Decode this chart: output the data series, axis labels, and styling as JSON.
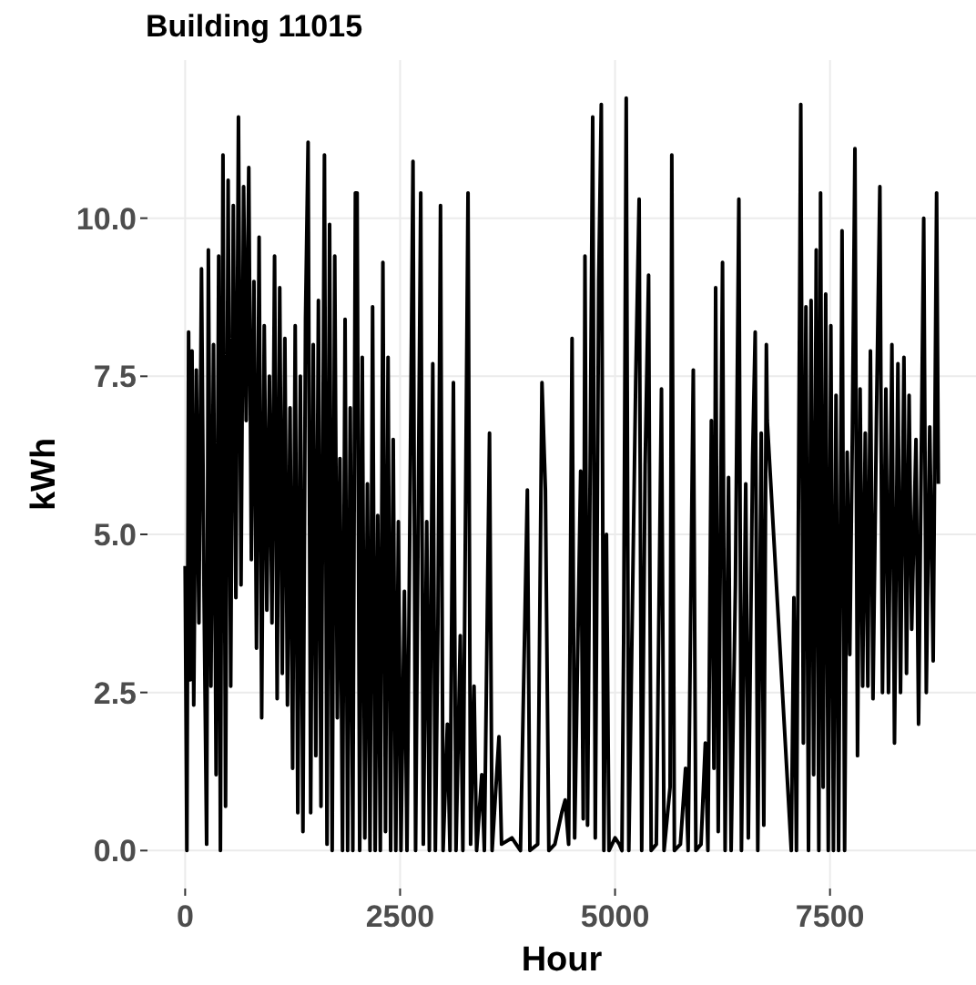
{
  "chart_data": {
    "type": "line",
    "title": "Building 11015",
    "xlabel": "Hour",
    "ylabel": "kWh",
    "xlim": [
      -438,
      9198
    ],
    "ylim": [
      -0.6,
      12.5
    ],
    "xticks": [
      0,
      2500,
      5000,
      7500
    ],
    "yticks": [
      {
        "value": 0,
        "label": "0.0"
      },
      {
        "value": 2.5,
        "label": "2.5"
      },
      {
        "value": 5,
        "label": "5.0"
      },
      {
        "value": 7.5,
        "label": "7.5"
      },
      {
        "value": 10,
        "label": "10.0"
      }
    ],
    "grid": true,
    "series": [
      {
        "color": "#000000",
        "x": [
          0,
          20,
          40,
          60,
          80,
          100,
          130,
          160,
          190,
          220,
          250,
          270,
          300,
          330,
          360,
          390,
          410,
          440,
          470,
          500,
          530,
          560,
          590,
          620,
          650,
          680,
          710,
          740,
          770,
          800,
          830,
          860,
          890,
          920,
          950,
          980,
          1010,
          1040,
          1070,
          1100,
          1130,
          1160,
          1190,
          1220,
          1250,
          1280,
          1310,
          1340,
          1370,
          1400,
          1430,
          1460,
          1490,
          1520,
          1550,
          1580,
          1620,
          1650,
          1680,
          1710,
          1740,
          1770,
          1800,
          1830,
          1860,
          1890,
          1920,
          1950,
          1980,
          2000,
          2030,
          2060,
          2090,
          2120,
          2150,
          2180,
          2210,
          2240,
          2270,
          2300,
          2330,
          2360,
          2390,
          2420,
          2450,
          2480,
          2510,
          2550,
          2580,
          2650,
          2680,
          2740,
          2770,
          2810,
          2840,
          2880,
          2910,
          2940,
          2970,
          3000,
          3050,
          3080,
          3120,
          3150,
          3200,
          3230,
          3290,
          3320,
          3360,
          3390,
          3450,
          3480,
          3540,
          3570,
          3650,
          3680,
          3800,
          3900,
          3980,
          4010,
          4100,
          4150,
          4190,
          4230,
          4300,
          4380,
          4420,
          4460,
          4500,
          4530,
          4600,
          4630,
          4650,
          4680,
          4740,
          4770,
          4810,
          4840,
          4870,
          4900,
          4930,
          5000,
          5050,
          5080,
          5100,
          5130,
          5160,
          5240,
          5280,
          5310,
          5350,
          5390,
          5420,
          5480,
          5540,
          5570,
          5640,
          5660,
          5690,
          5760,
          5820,
          5850,
          5910,
          5940,
          6000,
          6050,
          6080,
          6120,
          6150,
          6170,
          6200,
          6250,
          6280,
          6320,
          6350,
          6400,
          6440,
          6470,
          6520,
          6550,
          6600,
          6630,
          6660,
          6700,
          6730,
          6760,
          6770,
          7050,
          7080,
          7110,
          7160,
          7190,
          7220,
          7250,
          7280,
          7310,
          7340,
          7370,
          7390,
          7420,
          7450,
          7480,
          7510,
          7540,
          7570,
          7600,
          7640,
          7670,
          7700,
          7730,
          7760,
          7790,
          7820,
          7850,
          7880,
          7910,
          7940,
          7970,
          8000,
          8040,
          8080,
          8110,
          8150,
          8180,
          8220,
          8250,
          8290,
          8320,
          8360,
          8390,
          8420,
          8450,
          8500,
          8530,
          8590,
          8620,
          8660,
          8700,
          8740,
          8760
        ],
        "values": [
          4.5,
          0,
          8.2,
          2.7,
          7.9,
          2.3,
          7.6,
          3.6,
          9.2,
          4.0,
          0.1,
          9.5,
          2.6,
          8.0,
          1.2,
          9.4,
          0,
          11.0,
          0.7,
          10.6,
          2.6,
          10.2,
          4.0,
          11.6,
          4.2,
          10.5,
          6.8,
          10.8,
          4.6,
          9.0,
          3.2,
          9.7,
          2.1,
          8.3,
          3.8,
          7.5,
          3.6,
          9.4,
          2.4,
          8.9,
          2.8,
          8.1,
          2.3,
          7.0,
          1.3,
          8.3,
          0.6,
          7.5,
          0.3,
          8.4,
          11.2,
          0.6,
          8.0,
          1.5,
          8.7,
          0.7,
          11.0,
          0.1,
          9.9,
          0,
          9.4,
          2.1,
          6.2,
          0,
          8.4,
          0,
          7.0,
          0,
          10.4,
          10.4,
          0,
          7.8,
          0.2,
          5.8,
          0,
          8.6,
          0,
          5.3,
          0,
          9.3,
          0.3,
          7.8,
          0,
          6.5,
          0,
          5.2,
          0,
          4.1,
          0,
          10.9,
          0,
          10.4,
          0.1,
          5.2,
          0,
          7.7,
          0,
          3.6,
          10.2,
          0,
          2.0,
          0,
          7.4,
          0,
          3.4,
          0,
          10.4,
          0.1,
          2.6,
          0,
          1.2,
          0,
          6.6,
          0,
          1.8,
          0.1,
          0.2,
          0,
          5.7,
          0,
          0.1,
          7.4,
          5.7,
          0,
          0.1,
          0.6,
          0.8,
          0.1,
          8.1,
          0.2,
          6.0,
          0.5,
          9.4,
          0.4,
          11.6,
          0.2,
          9.0,
          11.8,
          0,
          5.0,
          0,
          0.2,
          0.1,
          0,
          3.3,
          11.9,
          0,
          7.4,
          10.3,
          0,
          6.1,
          9.1,
          0,
          0.1,
          7.3,
          0,
          1.0,
          11.0,
          0,
          0.1,
          1.3,
          0,
          7.6,
          0,
          0.1,
          1.7,
          0,
          6.8,
          1.3,
          8.9,
          0.3,
          9.3,
          0,
          5.9,
          0,
          4.2,
          10.3,
          0,
          5.8,
          0.2,
          6.2,
          8.2,
          0,
          6.6,
          0.4,
          8.0,
          6.8,
          0,
          4.0,
          0,
          11.8,
          1.7,
          8.6,
          0,
          8.7,
          1.2,
          9.5,
          0,
          10.4,
          1.0,
          8.8,
          0,
          8.3,
          0,
          7.2,
          0,
          9.8,
          0,
          6.3,
          3.1,
          6.6,
          11.1,
          1.5,
          7.3,
          2.6,
          6.6,
          2.6,
          7.9,
          2.4,
          6.8,
          10.5,
          2.5,
          7.3,
          2.5,
          8.0,
          1.7,
          7.7,
          2.5,
          7.8,
          2.8,
          7.2,
          3.5,
          6.5,
          2.0,
          10.0,
          2.5,
          6.7,
          3.0,
          10.4,
          5.8
        ]
      }
    ]
  }
}
